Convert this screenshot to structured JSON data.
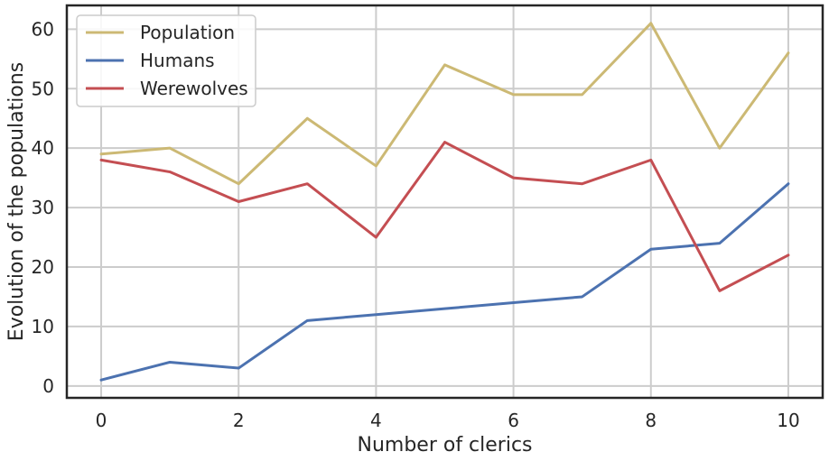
{
  "chart_data": {
    "type": "line",
    "xlabel": "Number of clerics",
    "ylabel": "Evolution of the populations",
    "x": [
      0,
      1,
      2,
      3,
      4,
      5,
      6,
      7,
      8,
      9,
      10
    ],
    "xlim": [
      -0.5,
      10.5
    ],
    "ylim": [
      -2,
      64
    ],
    "xticks": [
      0,
      2,
      4,
      6,
      8,
      10
    ],
    "yticks": [
      0,
      10,
      20,
      30,
      40,
      50,
      60
    ],
    "grid": true,
    "legend_position": "top-left",
    "series": [
      {
        "name": "Population",
        "color": "#ccb974",
        "values": [
          39,
          40,
          34,
          45,
          37,
          54,
          49,
          49,
          61,
          40,
          56
        ]
      },
      {
        "name": "Humans",
        "color": "#4c72b0",
        "values": [
          1,
          4,
          3,
          11,
          12,
          13,
          14,
          15,
          23,
          24,
          34
        ]
      },
      {
        "name": "Werewolves",
        "color": "#c44e52",
        "values": [
          38,
          36,
          31,
          34,
          25,
          41,
          35,
          34,
          38,
          16,
          22
        ]
      }
    ]
  }
}
